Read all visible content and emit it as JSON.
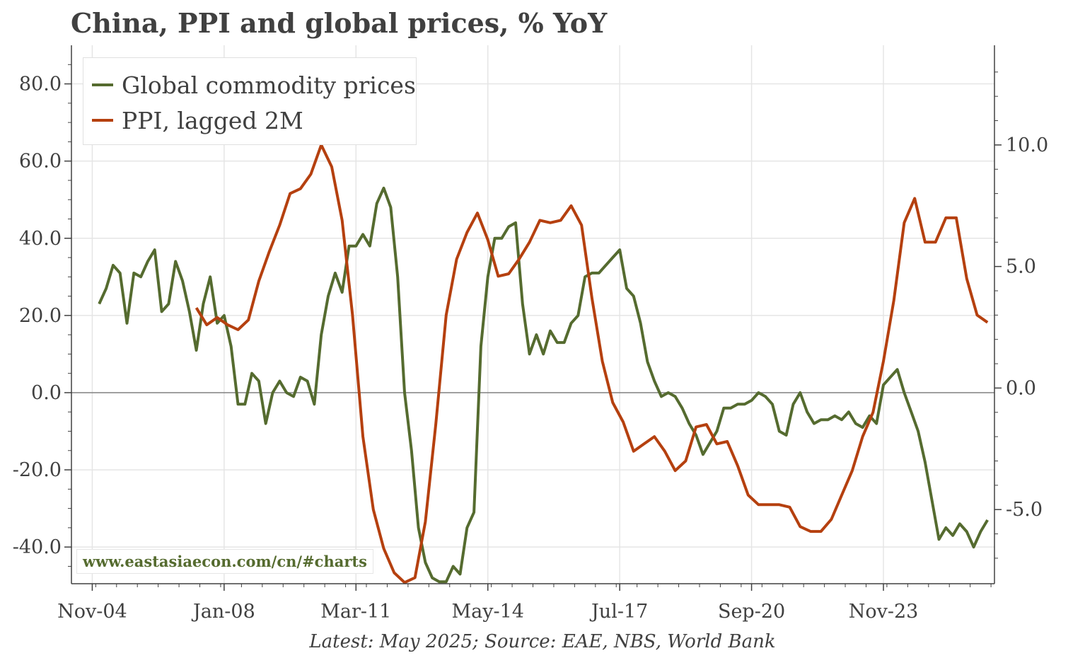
{
  "title": "China, PPI and global prices, % YoY",
  "footnote": "Latest: May 2025; Source: EAE, NBS, World Bank",
  "watermark": "www.eastasiaecon.com/cn/#charts",
  "colors": {
    "commodity": "#556b2f",
    "ppi": "#b5400f",
    "grid": "#e5e5e5",
    "zero": "#808080",
    "axis": "#404040"
  },
  "chart_data": {
    "type": "line",
    "title": "China, PPI and global prices, % YoY",
    "x_ticks": [
      "Nov-04",
      "Jan-08",
      "Mar-11",
      "May-14",
      "Jul-17",
      "Sep-20",
      "Nov-23"
    ],
    "x_range": [
      "2004-05",
      "2026-07"
    ],
    "left_axis": {
      "ticks": [
        "80.0",
        "60.0",
        "40.0",
        "20.0",
        "0.0",
        "-20.0",
        "-40.0"
      ],
      "range": [
        -49.5,
        90
      ]
    },
    "right_axis": {
      "ticks": [
        "10.0",
        "5.0",
        "0.0",
        "-5.0"
      ],
      "range": [
        -8.05,
        14.1
      ]
    },
    "grid": true,
    "legend_position": "top-left",
    "series": [
      {
        "name": "Global commodity prices",
        "axis": "left",
        "points": [
          [
            "2005-01",
            23
          ],
          [
            "2005-03",
            27
          ],
          [
            "2005-05",
            33
          ],
          [
            "2005-07",
            31
          ],
          [
            "2005-09",
            18
          ],
          [
            "2005-11",
            31
          ],
          [
            "2006-01",
            30
          ],
          [
            "2006-03",
            34
          ],
          [
            "2006-05",
            37
          ],
          [
            "2006-07",
            21
          ],
          [
            "2006-09",
            23
          ],
          [
            "2006-11",
            34
          ],
          [
            "2007-01",
            29
          ],
          [
            "2007-03",
            21
          ],
          [
            "2007-05",
            11
          ],
          [
            "2007-07",
            23
          ],
          [
            "2007-09",
            30
          ],
          [
            "2007-11",
            18
          ],
          [
            "2008-01",
            20
          ],
          [
            "2008-03",
            12
          ],
          [
            "2008-05",
            -3
          ],
          [
            "2008-07",
            -3
          ],
          [
            "2008-09",
            5
          ],
          [
            "2008-11",
            3
          ],
          [
            "2009-01",
            -8
          ],
          [
            "2009-03",
            0
          ],
          [
            "2009-05",
            3
          ],
          [
            "2009-07",
            0
          ],
          [
            "2009-09",
            -1
          ],
          [
            "2009-11",
            4
          ],
          [
            "2010-01",
            3
          ],
          [
            "2010-03",
            -3
          ],
          [
            "2010-05",
            15
          ],
          [
            "2010-07",
            25
          ],
          [
            "2010-09",
            31
          ],
          [
            "2010-11",
            26
          ],
          [
            "2011-01",
            38
          ],
          [
            "2011-03",
            38
          ],
          [
            "2011-05",
            41
          ],
          [
            "2011-07",
            38
          ],
          [
            "2011-09",
            49
          ],
          [
            "2011-11",
            53
          ],
          [
            "2012-01",
            48
          ],
          [
            "2012-03",
            30
          ],
          [
            "2012-05",
            0
          ],
          [
            "2012-07",
            -15
          ],
          [
            "2012-09",
            -35
          ],
          [
            "2012-11",
            -44
          ],
          [
            "2013-01",
            -48
          ],
          [
            "2013-03",
            -49
          ],
          [
            "2013-05",
            -49
          ],
          [
            "2013-07",
            -45
          ],
          [
            "2013-09",
            -47
          ],
          [
            "2013-11",
            -35
          ],
          [
            "2014-01",
            -31
          ],
          [
            "2014-03",
            12
          ],
          [
            "2014-05",
            30
          ],
          [
            "2014-07",
            40
          ],
          [
            "2014-09",
            40
          ],
          [
            "2014-11",
            43
          ],
          [
            "2015-01",
            44
          ],
          [
            "2015-03",
            23
          ],
          [
            "2015-05",
            10
          ],
          [
            "2015-07",
            15
          ],
          [
            "2015-09",
            10
          ],
          [
            "2015-11",
            16
          ],
          [
            "2016-01",
            13
          ],
          [
            "2016-03",
            13
          ],
          [
            "2016-05",
            18
          ],
          [
            "2016-07",
            20
          ],
          [
            "2016-09",
            30
          ],
          [
            "2016-11",
            31
          ],
          [
            "2017-01",
            31
          ],
          [
            "2017-03",
            33
          ],
          [
            "2017-05",
            35
          ],
          [
            "2017-07",
            37
          ],
          [
            "2017-09",
            27
          ],
          [
            "2017-11",
            25
          ],
          [
            "2018-01",
            18
          ],
          [
            "2018-03",
            8
          ],
          [
            "2018-05",
            3
          ],
          [
            "2018-07",
            -1
          ],
          [
            "2018-09",
            0
          ],
          [
            "2018-11",
            -1
          ],
          [
            "2019-01",
            -4
          ],
          [
            "2019-03",
            -8
          ],
          [
            "2019-05",
            -11
          ],
          [
            "2019-07",
            -16
          ],
          [
            "2019-09",
            -13
          ],
          [
            "2019-11",
            -10
          ],
          [
            "2020-01",
            -4
          ],
          [
            "2020-03",
            -4
          ],
          [
            "2020-05",
            -3
          ],
          [
            "2020-07",
            -3
          ],
          [
            "2020-09",
            -2
          ],
          [
            "2020-11",
            0
          ],
          [
            "2021-01",
            -1
          ],
          [
            "2021-03",
            -3
          ],
          [
            "2021-05",
            -10
          ],
          [
            "2021-07",
            -11
          ],
          [
            "2021-09",
            -3
          ],
          [
            "2021-11",
            0
          ],
          [
            "2022-01",
            -5
          ],
          [
            "2022-03",
            -8
          ],
          [
            "2022-05",
            -7
          ],
          [
            "2022-07",
            -7
          ],
          [
            "2022-09",
            -6
          ],
          [
            "2022-11",
            -7
          ],
          [
            "2023-01",
            -5
          ],
          [
            "2023-03",
            -8
          ],
          [
            "2023-05",
            -9
          ],
          [
            "2023-07",
            -6
          ],
          [
            "2023-09",
            -8
          ],
          [
            "2023-11",
            2
          ],
          [
            "2024-01",
            4
          ],
          [
            "2024-03",
            6
          ],
          [
            "2024-05",
            0
          ],
          [
            "2024-07",
            -5
          ],
          [
            "2024-09",
            -10
          ],
          [
            "2024-11",
            -18
          ],
          [
            "2025-01",
            -28
          ],
          [
            "2025-03",
            -38
          ],
          [
            "2025-05",
            -35
          ],
          [
            "2025-07",
            -37
          ],
          [
            "2025-09",
            -34
          ],
          [
            "2025-11",
            -36
          ],
          [
            "2026-01",
            -40
          ],
          [
            "2026-03",
            -36
          ],
          [
            "2026-05",
            -33
          ]
        ]
      },
      {
        "name": "PPI, lagged 2M",
        "axis": "right",
        "points": [
          [
            "2007-05",
            3.3
          ],
          [
            "2007-08",
            2.6
          ],
          [
            "2007-11",
            2.9
          ],
          [
            "2008-02",
            2.6
          ],
          [
            "2008-05",
            2.4
          ],
          [
            "2008-08",
            2.8
          ],
          [
            "2008-11",
            4.4
          ],
          [
            "2009-02",
            5.6
          ],
          [
            "2009-05",
            6.7
          ],
          [
            "2009-08",
            8.0
          ],
          [
            "2009-11",
            8.2
          ],
          [
            "2010-02",
            8.8
          ],
          [
            "2010-05",
            10.0
          ],
          [
            "2010-08",
            9.1
          ],
          [
            "2010-11",
            6.9
          ],
          [
            "2011-02",
            3.0
          ],
          [
            "2011-05",
            -2.0
          ],
          [
            "2011-08",
            -5.0
          ],
          [
            "2011-11",
            -6.6
          ],
          [
            "2012-02",
            -7.6
          ],
          [
            "2012-05",
            -8.0
          ],
          [
            "2012-08",
            -7.8
          ],
          [
            "2012-11",
            -5.5
          ],
          [
            "2013-02",
            -1.5
          ],
          [
            "2013-05",
            3.0
          ],
          [
            "2013-08",
            5.3
          ],
          [
            "2013-11",
            6.4
          ],
          [
            "2014-02",
            7.2
          ],
          [
            "2014-05",
            6.1
          ],
          [
            "2014-08",
            4.6
          ],
          [
            "2014-11",
            4.7
          ],
          [
            "2015-02",
            5.3
          ],
          [
            "2015-05",
            6.0
          ],
          [
            "2015-08",
            6.9
          ],
          [
            "2015-11",
            6.8
          ],
          [
            "2016-02",
            6.9
          ],
          [
            "2016-05",
            7.5
          ],
          [
            "2016-08",
            6.7
          ],
          [
            "2016-11",
            3.7
          ],
          [
            "2017-02",
            1.1
          ],
          [
            "2017-05",
            -0.6
          ],
          [
            "2017-08",
            -1.4
          ],
          [
            "2017-11",
            -2.6
          ],
          [
            "2018-02",
            -2.3
          ],
          [
            "2018-05",
            -2.0
          ],
          [
            "2018-08",
            -2.6
          ],
          [
            "2018-11",
            -3.4
          ],
          [
            "2019-02",
            -3.0
          ],
          [
            "2019-05",
            -1.6
          ],
          [
            "2019-08",
            -1.5
          ],
          [
            "2019-11",
            -2.3
          ],
          [
            "2020-02",
            -2.2
          ],
          [
            "2020-05",
            -3.2
          ],
          [
            "2020-08",
            -4.4
          ],
          [
            "2020-11",
            -4.8
          ],
          [
            "2021-02",
            -4.8
          ],
          [
            "2021-05",
            -4.8
          ],
          [
            "2021-08",
            -4.9
          ],
          [
            "2021-11",
            -5.7
          ],
          [
            "2022-02",
            -5.9
          ],
          [
            "2022-05",
            -5.9
          ],
          [
            "2022-08",
            -5.4
          ],
          [
            "2022-11",
            -4.4
          ],
          [
            "2023-02",
            -3.4
          ],
          [
            "2023-05",
            -2.0
          ],
          [
            "2023-08",
            -1.0
          ],
          [
            "2023-11",
            1.1
          ],
          [
            "2024-02",
            3.6
          ],
          [
            "2024-05",
            6.8
          ],
          [
            "2024-08",
            7.8
          ],
          [
            "2024-11",
            6.0
          ],
          [
            "2025-02",
            6.0
          ],
          [
            "2025-05",
            7.0
          ],
          [
            "2025-08",
            7.0
          ],
          [
            "2025-11",
            4.5
          ],
          [
            "2026-02",
            3.0
          ],
          [
            "2026-05",
            2.7
          ]
        ]
      }
    ]
  }
}
